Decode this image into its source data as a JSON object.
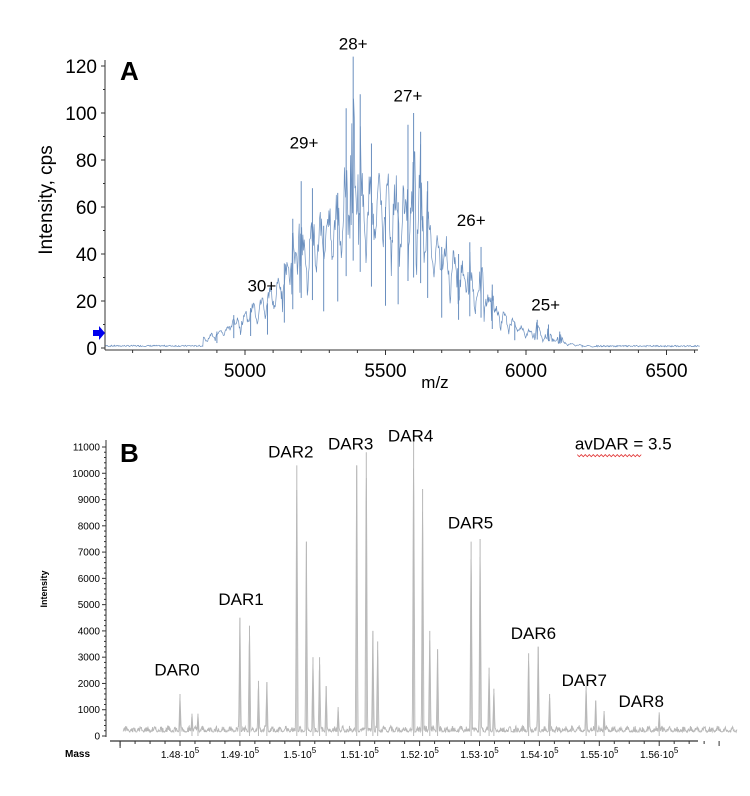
{
  "chart_data": [
    {
      "type": "line",
      "panel_label": "A",
      "title": "",
      "xlabel": "m/z",
      "ylabel": "Intensity, cps",
      "xlim": [
        4500,
        6620
      ],
      "ylim": [
        0,
        125
      ],
      "xticks": [
        5000,
        5500,
        6000,
        6500
      ],
      "yticks": [
        0,
        20,
        40,
        60,
        80,
        100,
        120
      ],
      "line_color": "#6a8fbf",
      "annotations": [
        {
          "text": "30+",
          "x": 5060,
          "y": 24
        },
        {
          "text": "29+",
          "x": 5210,
          "y": 85
        },
        {
          "text": "28+",
          "x": 5385,
          "y": 127
        },
        {
          "text": "27+",
          "x": 5580,
          "y": 105
        },
        {
          "text": "26+",
          "x": 5805,
          "y": 52
        },
        {
          "text": "25+",
          "x": 6070,
          "y": 16
        }
      ],
      "envelope_peaks": [
        {
          "x": 4900,
          "y": 7
        },
        {
          "x": 4960,
          "y": 14
        },
        {
          "x": 5020,
          "y": 17
        },
        {
          "x": 5080,
          "y": 19
        },
        {
          "x": 5140,
          "y": 36
        },
        {
          "x": 5170,
          "y": 55
        },
        {
          "x": 5200,
          "y": 71
        },
        {
          "x": 5240,
          "y": 68
        },
        {
          "x": 5280,
          "y": 52
        },
        {
          "x": 5330,
          "y": 66
        },
        {
          "x": 5360,
          "y": 102
        },
        {
          "x": 5385,
          "y": 124
        },
        {
          "x": 5410,
          "y": 108
        },
        {
          "x": 5450,
          "y": 87
        },
        {
          "x": 5500,
          "y": 60
        },
        {
          "x": 5545,
          "y": 62
        },
        {
          "x": 5580,
          "y": 95
        },
        {
          "x": 5600,
          "y": 100
        },
        {
          "x": 5625,
          "y": 92
        },
        {
          "x": 5650,
          "y": 71
        },
        {
          "x": 5700,
          "y": 43
        },
        {
          "x": 5760,
          "y": 40
        },
        {
          "x": 5800,
          "y": 45
        },
        {
          "x": 5840,
          "y": 43
        },
        {
          "x": 5880,
          "y": 27
        },
        {
          "x": 5960,
          "y": 11
        },
        {
          "x": 6040,
          "y": 12
        },
        {
          "x": 6080,
          "y": 10
        },
        {
          "x": 6120,
          "y": 7
        },
        {
          "x": 6200,
          "y": 1
        }
      ],
      "marker": {
        "type": "blue-arrow",
        "y": 6
      }
    },
    {
      "type": "line",
      "panel_label": "B",
      "title": "",
      "xlabel": "Mass",
      "ylabel": "Intensity",
      "xlim": [
        146950,
        157300
      ],
      "ylim": [
        0,
        11200
      ],
      "xticks": [
        148000,
        149000,
        150000,
        151000,
        152000,
        153000,
        154000,
        155000,
        156000
      ],
      "xtick_labels": [
        "1.48·10^5",
        "1.49·10^5",
        "1.5·10^5",
        "1.51·10^5",
        "1.52·10^5",
        "1.53·10^5",
        "1.54·10^5",
        "1.55·10^5",
        "1.56·10^5"
      ],
      "yticks": [
        0,
        1000,
        2000,
        3000,
        4000,
        5000,
        6000,
        7000,
        8000,
        9000,
        10000,
        11000
      ],
      "line_color": "#b8b8b8",
      "annotations": [
        {
          "text": "DAR0",
          "x": 147950,
          "y": 2300
        },
        {
          "text": "DAR1",
          "x": 149020,
          "y": 4990
        },
        {
          "text": "DAR2",
          "x": 149850,
          "y": 10600
        },
        {
          "text": "DAR3",
          "x": 150850,
          "y": 10900
        },
        {
          "text": "DAR4",
          "x": 151850,
          "y": 11200
        },
        {
          "text": "DAR5",
          "x": 152850,
          "y": 7900
        },
        {
          "text": "DAR6",
          "x": 153900,
          "y": 3700
        },
        {
          "text": "DAR7",
          "x": 154750,
          "y": 1900
        },
        {
          "text": "DAR8",
          "x": 155700,
          "y": 1100
        },
        {
          "text": "avDAR = 3.5",
          "x": 155400,
          "y": 10900
        }
      ],
      "peaks": [
        {
          "x": 148000,
          "y": 1600
        },
        {
          "x": 148200,
          "y": 850
        },
        {
          "x": 148300,
          "y": 850
        },
        {
          "x": 149000,
          "y": 4500
        },
        {
          "x": 149160,
          "y": 4200
        },
        {
          "x": 149310,
          "y": 2100
        },
        {
          "x": 149450,
          "y": 2050
        },
        {
          "x": 149950,
          "y": 10300
        },
        {
          "x": 150110,
          "y": 7400
        },
        {
          "x": 150220,
          "y": 3000
        },
        {
          "x": 150330,
          "y": 3000
        },
        {
          "x": 150440,
          "y": 1900
        },
        {
          "x": 150640,
          "y": 1100
        },
        {
          "x": 150950,
          "y": 10300
        },
        {
          "x": 151110,
          "y": 10800
        },
        {
          "x": 151220,
          "y": 4000
        },
        {
          "x": 151300,
          "y": 3600
        },
        {
          "x": 151900,
          "y": 11200
        },
        {
          "x": 152050,
          "y": 9400
        },
        {
          "x": 152170,
          "y": 4000
        },
        {
          "x": 152300,
          "y": 3300
        },
        {
          "x": 152860,
          "y": 7400
        },
        {
          "x": 153010,
          "y": 7500
        },
        {
          "x": 153160,
          "y": 2600
        },
        {
          "x": 153240,
          "y": 1800
        },
        {
          "x": 153820,
          "y": 3150
        },
        {
          "x": 153980,
          "y": 3400
        },
        {
          "x": 154170,
          "y": 1600
        },
        {
          "x": 154780,
          "y": 1900
        },
        {
          "x": 154940,
          "y": 1350
        },
        {
          "x": 155080,
          "y": 950
        },
        {
          "x": 156000,
          "y": 900
        }
      ]
    }
  ]
}
